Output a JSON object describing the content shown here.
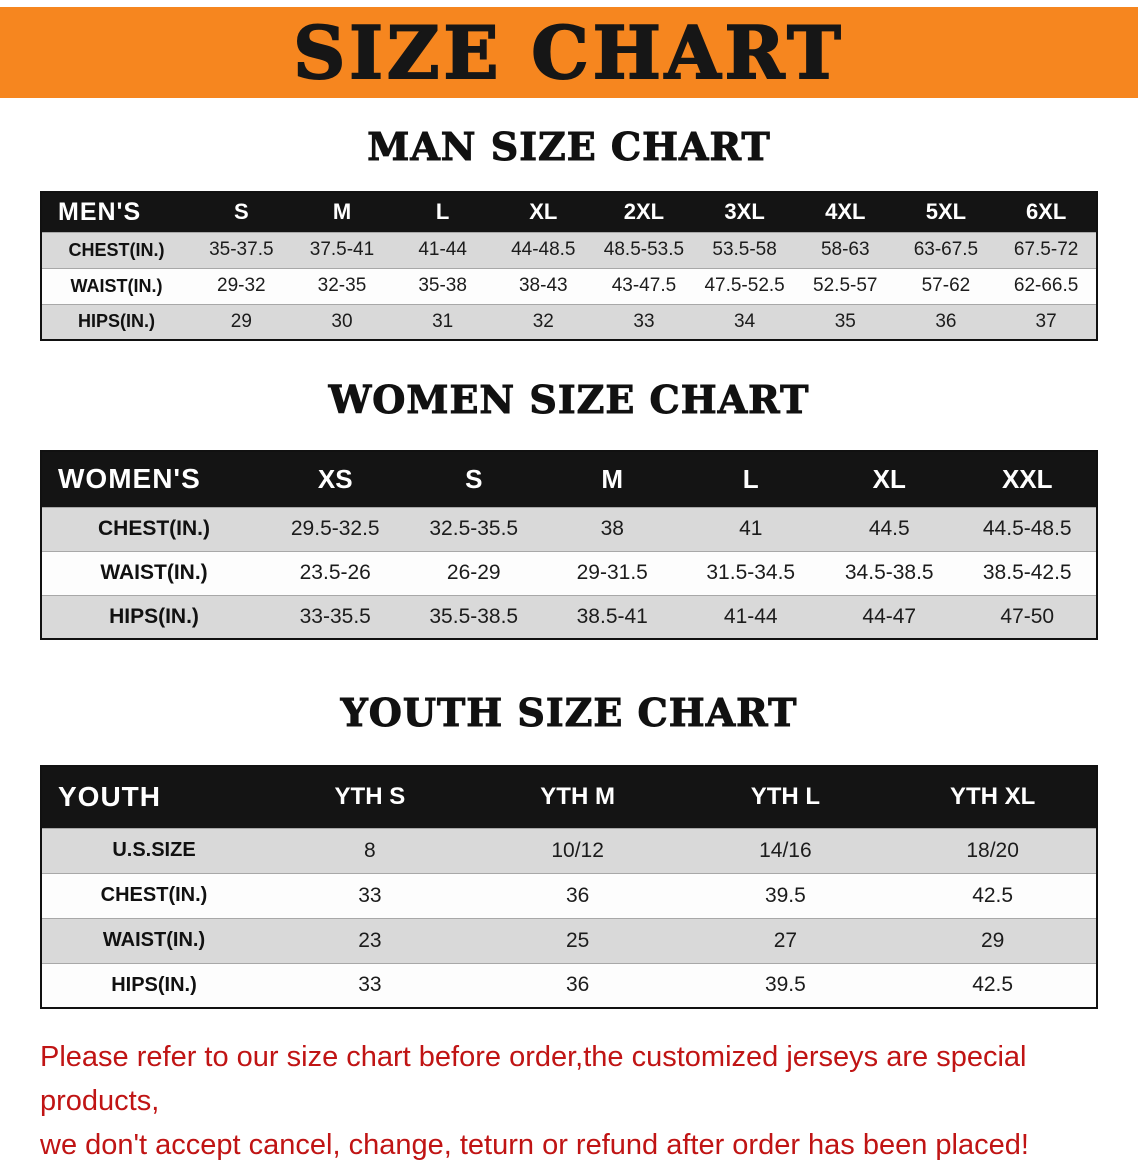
{
  "banner": {
    "title": "SIZE CHART",
    "bg_color": "#F6861F",
    "text_color": "#161616"
  },
  "sections": [
    {
      "heading": "MAN SIZE CHART",
      "table": {
        "corner_label": "MEN'S",
        "columns": [
          "S",
          "M",
          "L",
          "XL",
          "2XL",
          "3XL",
          "4XL",
          "5XL",
          "6XL"
        ],
        "rows": [
          {
            "label": "CHEST(IN.)",
            "values": [
              "35-37.5",
              "37.5-41",
              "41-44",
              "44-48.5",
              "48.5-53.5",
              "53.5-58",
              "58-63",
              "63-67.5",
              "67.5-72"
            ]
          },
          {
            "label": "WAIST(IN.)",
            "values": [
              "29-32",
              "32-35",
              "35-38",
              "38-43",
              "43-47.5",
              "47.5-52.5",
              "52.5-57",
              "57-62",
              "62-66.5"
            ]
          },
          {
            "label": "HIPS(IN.)",
            "values": [
              "29",
              "30",
              "31",
              "32",
              "33",
              "34",
              "35",
              "36",
              "37"
            ]
          }
        ]
      }
    },
    {
      "heading": "WOMEN SIZE CHART",
      "table": {
        "corner_label": "WOMEN'S",
        "columns": [
          "XS",
          "S",
          "M",
          "L",
          "XL",
          "XXL"
        ],
        "rows": [
          {
            "label": "CHEST(IN.)",
            "values": [
              "29.5-32.5",
              "32.5-35.5",
              "38",
              "41",
              "44.5",
              "44.5-48.5"
            ]
          },
          {
            "label": "WAIST(IN.)",
            "values": [
              "23.5-26",
              "26-29",
              "29-31.5",
              "31.5-34.5",
              "34.5-38.5",
              "38.5-42.5"
            ]
          },
          {
            "label": "HIPS(IN.)",
            "values": [
              "33-35.5",
              "35.5-38.5",
              "38.5-41",
              "41-44",
              "44-47",
              "47-50"
            ]
          }
        ]
      }
    },
    {
      "heading": "YOUTH SIZE CHART",
      "table": {
        "corner_label": "YOUTH",
        "columns": [
          "YTH S",
          "YTH M",
          "YTH L",
          "YTH XL"
        ],
        "rows": [
          {
            "label": "U.S.SIZE",
            "values": [
              "8",
              "10/12",
              "14/16",
              "18/20"
            ]
          },
          {
            "label": "CHEST(IN.)",
            "values": [
              "33",
              "36",
              "39.5",
              "42.5"
            ]
          },
          {
            "label": "WAIST(IN.)",
            "values": [
              "23",
              "25",
              "27",
              "29"
            ]
          },
          {
            "label": "HIPS(IN.)",
            "values": [
              "33",
              "36",
              "39.5",
              "42.5"
            ]
          }
        ]
      }
    }
  ],
  "disclaimer": {
    "line1": "Please refer to our size chart before order,the customized jerseys are special products,",
    "line2": "we don't accept cancel, change, teturn or refund after order has been placed!",
    "color": "#c01414"
  },
  "table_colors": {
    "header_bg": "#141414",
    "header_text": "#ffffff",
    "stripe_gray": "#d9d9d9",
    "stripe_white": "#fdfdfd"
  }
}
